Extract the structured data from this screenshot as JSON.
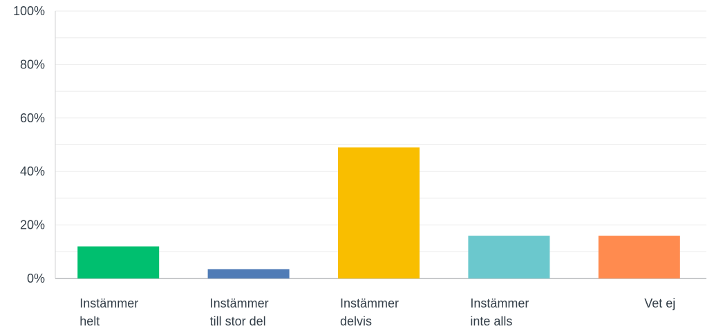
{
  "chart_data": {
    "type": "bar",
    "categories": [
      [
        "Instämmer",
        "helt"
      ],
      [
        "Instämmer",
        "till stor del"
      ],
      [
        "Instämmer",
        "delvis"
      ],
      [
        "Instämmer",
        "inte alls"
      ],
      [
        "Vet ej"
      ]
    ],
    "values": [
      12,
      3.5,
      49,
      16,
      16
    ],
    "colors": [
      "#00bf6f",
      "#507cb6",
      "#f9be00",
      "#6bc8cd",
      "#ff8b4f"
    ],
    "ylim": [
      0,
      100
    ],
    "yticks": [
      "0%",
      "20%",
      "40%",
      "60%",
      "80%",
      "100%"
    ],
    "ytick_values": [
      0,
      20,
      40,
      60,
      80,
      100
    ],
    "grid": true,
    "legend": "none",
    "title": "",
    "xlabel": "",
    "ylabel": ""
  }
}
